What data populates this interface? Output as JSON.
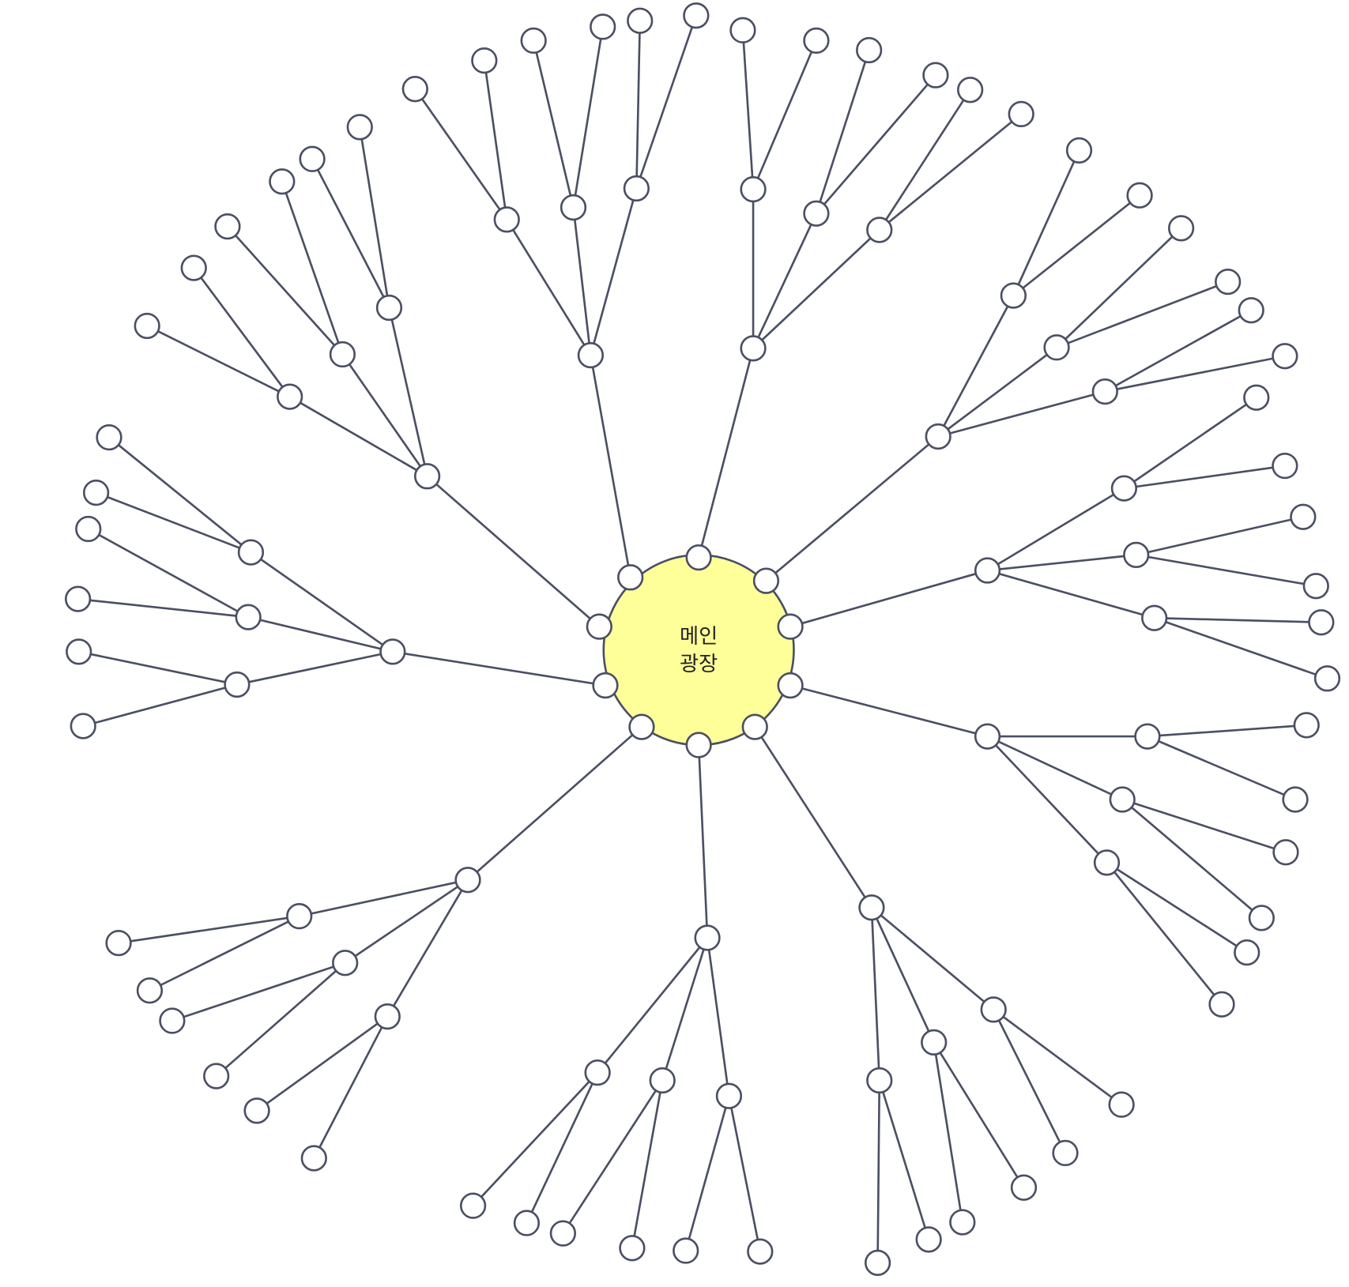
{
  "center": {
    "label_lines": [
      "메인",
      "광장"
    ]
  }
}
